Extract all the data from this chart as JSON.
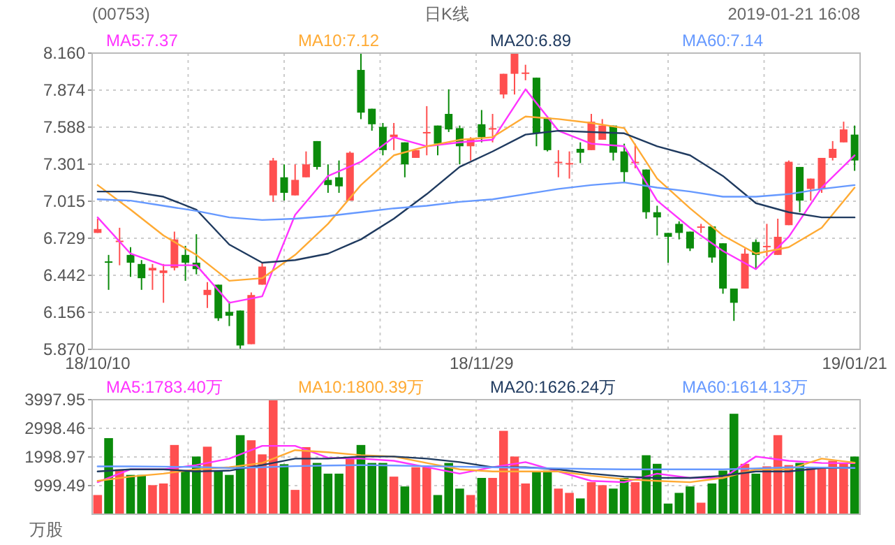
{
  "chart_data": [
    {
      "type": "candlestick",
      "title": "日K线",
      "annotations": [
        "(00753)",
        "2019-01-21 16:08"
      ],
      "categories": [
        "18/10/10",
        null,
        null,
        null,
        null,
        null,
        null,
        null,
        null,
        null,
        null,
        null,
        null,
        null,
        null,
        null,
        null,
        null,
        null,
        null,
        null,
        null,
        null,
        null,
        null,
        null,
        null,
        null,
        null,
        null,
        null,
        null,
        null,
        null,
        null,
        "18/11/29",
        null,
        null,
        null,
        null,
        null,
        null,
        null,
        null,
        null,
        null,
        null,
        null,
        null,
        null,
        null,
        null,
        null,
        null,
        null,
        null,
        null,
        null,
        null,
        null,
        null,
        null,
        null,
        null,
        null,
        null,
        null,
        null,
        null,
        "19/01/21"
      ],
      "ohlc": [
        [
          6.77,
          6.88,
          6.77,
          6.8
        ],
        [
          6.55,
          6.6,
          6.33,
          6.54
        ],
        [
          6.7,
          6.81,
          6.52,
          6.71
        ],
        [
          6.6,
          6.66,
          6.43,
          6.54
        ],
        [
          6.53,
          6.56,
          6.33,
          6.42
        ],
        [
          6.48,
          6.53,
          6.33,
          6.5
        ],
        [
          6.46,
          6.53,
          6.23,
          6.48
        ],
        [
          6.5,
          6.78,
          6.48,
          6.72
        ],
        [
          6.6,
          6.67,
          6.4,
          6.54
        ],
        [
          6.54,
          6.76,
          6.45,
          6.49
        ],
        [
          6.29,
          6.39,
          6.19,
          6.33
        ],
        [
          6.37,
          6.37,
          6.09,
          6.11
        ],
        [
          6.16,
          6.24,
          6.05,
          6.13
        ],
        [
          6.17,
          6.17,
          5.87,
          5.9
        ],
        [
          5.91,
          6.31,
          5.91,
          6.29
        ],
        [
          6.37,
          6.54,
          6.37,
          6.51
        ],
        [
          7.06,
          7.35,
          7.01,
          7.33
        ],
        [
          7.2,
          7.3,
          7.02,
          7.08
        ],
        [
          7.06,
          7.3,
          7.06,
          7.18
        ],
        [
          7.2,
          7.4,
          7.2,
          7.3
        ],
        [
          7.48,
          7.48,
          7.26,
          7.28
        ],
        [
          7.18,
          7.3,
          7.08,
          7.14
        ],
        [
          7.2,
          7.33,
          7.08,
          7.13
        ],
        [
          7.02,
          7.4,
          7.02,
          7.39
        ],
        [
          8.03,
          8.16,
          7.65,
          7.7
        ],
        [
          7.73,
          7.73,
          7.56,
          7.61
        ],
        [
          7.59,
          7.62,
          7.37,
          7.41
        ],
        [
          7.51,
          7.62,
          7.41,
          7.53
        ],
        [
          7.47,
          7.47,
          7.2,
          7.3
        ],
        [
          7.35,
          7.41,
          7.35,
          7.41
        ],
        [
          7.54,
          7.75,
          7.37,
          7.55
        ],
        [
          7.6,
          7.6,
          7.37,
          7.46
        ],
        [
          7.69,
          7.88,
          7.55,
          7.57
        ],
        [
          7.58,
          7.6,
          7.3,
          7.44
        ],
        [
          7.44,
          7.51,
          7.33,
          7.5
        ],
        [
          7.61,
          7.72,
          7.47,
          7.51
        ],
        [
          7.57,
          7.69,
          7.47,
          7.58
        ],
        [
          7.84,
          8.0,
          7.81,
          8.0
        ],
        [
          8.0,
          8.16,
          7.84,
          8.16
        ],
        [
          8.0,
          8.07,
          7.95,
          8.01
        ],
        [
          7.97,
          7.97,
          7.44,
          7.54
        ],
        [
          7.66,
          7.66,
          7.4,
          7.41
        ],
        [
          7.31,
          7.41,
          7.2,
          7.32
        ],
        [
          7.3,
          7.4,
          7.19,
          7.31
        ],
        [
          7.42,
          7.47,
          7.31,
          7.39
        ],
        [
          7.41,
          7.69,
          7.41,
          7.63
        ],
        [
          7.49,
          7.65,
          7.49,
          7.6
        ],
        [
          7.6,
          7.6,
          7.33,
          7.39
        ],
        [
          7.4,
          7.46,
          7.16,
          7.24
        ],
        [
          7.31,
          7.46,
          7.27,
          7.32
        ],
        [
          7.26,
          7.26,
          6.88,
          6.93
        ],
        [
          6.93,
          6.98,
          6.75,
          6.89
        ],
        [
          6.77,
          6.77,
          6.54,
          6.74
        ],
        [
          6.84,
          6.86,
          6.72,
          6.77
        ],
        [
          6.78,
          6.78,
          6.63,
          6.65
        ],
        [
          6.81,
          6.84,
          6.77,
          6.82
        ],
        [
          6.82,
          6.82,
          6.54,
          6.58
        ],
        [
          6.69,
          6.69,
          6.3,
          6.34
        ],
        [
          6.34,
          6.34,
          6.09,
          6.23
        ],
        [
          6.34,
          6.65,
          6.34,
          6.61
        ],
        [
          6.7,
          6.72,
          6.49,
          6.6
        ],
        [
          6.66,
          6.84,
          6.59,
          6.67
        ],
        [
          6.6,
          6.88,
          6.6,
          6.74
        ],
        [
          6.83,
          7.33,
          6.83,
          7.32
        ],
        [
          7.28,
          7.28,
          6.93,
          7.02
        ],
        [
          7.11,
          7.19,
          7.02,
          7.19
        ],
        [
          7.11,
          7.35,
          7.08,
          7.35
        ],
        [
          7.35,
          7.48,
          7.33,
          7.42
        ],
        [
          7.47,
          7.63,
          7.47,
          7.57
        ],
        [
          7.53,
          7.6,
          7.25,
          7.33
        ]
      ],
      "colors": [
        "#ff4f4f",
        "#0b8b0b",
        "#ff4f4f",
        "#0b8b0b",
        "#0b8b0b",
        "#ff4f4f",
        "#ff4f4f",
        "#ff4f4f",
        "#0b8b0b",
        "#0b8b0b",
        "#ff4f4f",
        "#0b8b0b",
        "#0b8b0b",
        "#0b8b0b",
        "#ff4f4f",
        "#ff4f4f",
        "#ff4f4f",
        "#0b8b0b",
        "#ff4f4f",
        "#ff4f4f",
        "#0b8b0b",
        "#0b8b0b",
        "#0b8b0b",
        "#ff4f4f",
        "#0b8b0b",
        "#0b8b0b",
        "#0b8b0b",
        "#ff4f4f",
        "#0b8b0b",
        "#ff4f4f",
        "#ff4f4f",
        "#0b8b0b",
        "#0b8b0b",
        "#0b8b0b",
        "#ff4f4f",
        "#0b8b0b",
        "#ff4f4f",
        "#ff4f4f",
        "#ff4f4f",
        "#ff4f4f",
        "#0b8b0b",
        "#0b8b0b",
        "#ff4f4f",
        "#ff4f4f",
        "#0b8b0b",
        "#ff4f4f",
        "#ff4f4f",
        "#0b8b0b",
        "#0b8b0b",
        "#ff4f4f",
        "#0b8b0b",
        "#0b8b0b",
        "#0b8b0b",
        "#0b8b0b",
        "#0b8b0b",
        "#ff4f4f",
        "#0b8b0b",
        "#0b8b0b",
        "#0b8b0b",
        "#ff4f4f",
        "#0b8b0b",
        "#ff4f4f",
        "#ff4f4f",
        "#ff4f4f",
        "#0b8b0b",
        "#ff4f4f",
        "#ff4f4f",
        "#ff4f4f",
        "#ff4f4f",
        "#0b8b0b"
      ],
      "ylim": [
        5.87,
        8.16
      ],
      "yticks": [
        {
          "value": 5.87,
          "label": "5.870"
        },
        6.156,
        6.442,
        6.729,
        7.015,
        7.301,
        7.588,
        7.874,
        {
          "value": 8.16,
          "label": "8.160"
        }
      ],
      "grid": true,
      "legend": "top",
      "series": [
        {
          "type": "line",
          "name": "MA5:7.37",
          "color": "#ff33ff",
          "values": [
            6.89,
            null,
            null,
            6.61,
            null,
            null,
            6.52,
            null,
            null,
            6.52,
            null,
            null,
            6.23,
            null,
            null,
            6.28,
            null,
            null,
            6.91,
            null,
            null,
            7.21,
            null,
            null,
            7.32,
            null,
            null,
            7.51,
            null,
            null,
            7.44,
            null,
            null,
            7.47,
            null,
            null,
            7.49,
            null,
            null,
            7.88,
            null,
            null,
            7.56,
            null,
            null,
            7.46,
            null,
            null,
            7.44,
            null,
            null,
            7.02,
            null,
            null,
            6.81,
            null,
            null,
            6.63,
            null,
            null,
            6.49,
            null,
            null,
            6.74,
            null,
            null,
            7.12,
            null,
            null,
            7.37
          ]
        },
        {
          "type": "line",
          "name": "MA10:7.12",
          "color": "#ffaa33",
          "values": [
            7.14,
            null,
            null,
            6.95,
            null,
            null,
            6.75,
            null,
            null,
            6.6,
            null,
            null,
            6.4,
            null,
            null,
            6.42,
            null,
            null,
            6.6,
            null,
            null,
            6.84,
            null,
            null,
            7.14,
            null,
            null,
            7.37,
            null,
            null,
            7.44,
            null,
            null,
            7.49,
            null,
            null,
            7.51,
            null,
            null,
            7.67,
            null,
            null,
            7.65,
            null,
            null,
            7.62,
            null,
            null,
            7.58,
            null,
            null,
            7.19,
            null,
            null,
            6.96,
            null,
            null,
            6.75,
            null,
            null,
            6.61,
            null,
            null,
            6.66,
            null,
            null,
            6.81,
            null,
            null,
            7.12
          ]
        },
        {
          "type": "line",
          "name": "MA20:6.89",
          "color": "#1f3a5f",
          "values": [
            7.09,
            null,
            null,
            7.09,
            null,
            null,
            7.05,
            null,
            null,
            6.95,
            null,
            null,
            6.68,
            null,
            null,
            6.54,
            null,
            null,
            6.56,
            null,
            null,
            6.61,
            null,
            null,
            6.72,
            null,
            null,
            6.88,
            null,
            null,
            7.07,
            null,
            null,
            7.28,
            null,
            null,
            7.4,
            null,
            null,
            7.53,
            null,
            null,
            7.56,
            null,
            null,
            7.55,
            null,
            null,
            7.54,
            null,
            null,
            7.44,
            null,
            null,
            7.37,
            null,
            null,
            7.21,
            null,
            null,
            7.0,
            null,
            null,
            6.93,
            null,
            null,
            6.89,
            null,
            null,
            6.89
          ]
        },
        {
          "type": "line",
          "name": "MA60:7.14",
          "color": "#6699ff",
          "values": [
            7.03,
            null,
            null,
            7.02,
            null,
            null,
            6.98,
            null,
            null,
            6.94,
            null,
            null,
            6.89,
            null,
            null,
            6.87,
            null,
            null,
            6.88,
            null,
            null,
            6.9,
            null,
            null,
            6.93,
            null,
            null,
            6.96,
            null,
            null,
            6.98,
            null,
            null,
            7.01,
            null,
            null,
            7.03,
            null,
            null,
            7.07,
            null,
            null,
            7.11,
            null,
            null,
            7.14,
            null,
            null,
            7.16,
            null,
            null,
            7.12,
            null,
            null,
            7.09,
            null,
            null,
            7.05,
            null,
            null,
            7.05,
            null,
            null,
            7.07,
            null,
            null,
            7.11,
            null,
            null,
            7.14
          ]
        }
      ]
    },
    {
      "type": "bar",
      "ylabel": "万股",
      "tick_labels": "y",
      "categories": [
        null,
        null,
        null,
        null,
        null,
        null,
        null,
        null,
        null,
        null,
        null,
        null,
        null,
        null,
        null,
        null,
        null,
        null,
        null,
        null,
        null,
        null,
        null,
        null,
        null,
        null,
        null,
        null,
        null,
        null,
        null,
        null,
        null,
        null,
        null,
        null,
        null,
        null,
        null,
        null,
        null,
        null,
        null,
        null,
        null,
        null,
        null,
        null,
        null,
        null,
        null,
        null,
        null,
        null,
        null,
        null,
        null,
        null,
        null,
        null,
        null,
        null,
        null,
        null,
        null,
        null,
        null,
        null,
        null,
        null
      ],
      "ylim": [
        0,
        3997.95
      ],
      "yticks": [
        999.49,
        1998.97,
        2998.46,
        3997.95
      ],
      "grid": true,
      "legend": "top",
      "series": [
        {
          "type": "bar",
          "values": [
            671,
            2656,
            1567,
            1373,
            1373,
            1015,
            1074,
            2417,
            1492,
            2014,
            2357,
            1492,
            1373,
            2760,
            2581,
            2089,
            3997.95,
            1746,
            850,
            2342,
            1790,
            1417,
            1417,
            1940,
            2417,
            1790,
            1790,
            1313,
            970,
            1641,
            1641,
            671,
            1790,
            895,
            671,
            1268,
            1268,
            2910,
            2014,
            1074,
            1492,
            1522,
            895,
            746,
            552,
            1119,
            1015,
            895,
            1268,
            1119,
            2059,
            1760,
            373,
            746,
            970,
            403,
            1074,
            1522,
            3506,
            1760,
            1417,
            1671,
            2760,
            1716,
            1790,
            1611,
            1611,
            1865,
            1790,
            2014
          ],
          "colors": [
            "#ff4f4f",
            "#0b8b0b",
            "#ff4f4f",
            "#0b8b0b",
            "#0b8b0b",
            "#ff4f4f",
            "#ff4f4f",
            "#ff4f4f",
            "#0b8b0b",
            "#0b8b0b",
            "#ff4f4f",
            "#0b8b0b",
            "#0b8b0b",
            "#0b8b0b",
            "#ff4f4f",
            "#ff4f4f",
            "#ff4f4f",
            "#0b8b0b",
            "#ff4f4f",
            "#ff4f4f",
            "#0b8b0b",
            "#0b8b0b",
            "#0b8b0b",
            "#ff4f4f",
            "#0b8b0b",
            "#0b8b0b",
            "#0b8b0b",
            "#ff4f4f",
            "#0b8b0b",
            "#ff4f4f",
            "#ff4f4f",
            "#0b8b0b",
            "#0b8b0b",
            "#0b8b0b",
            "#ff4f4f",
            "#0b8b0b",
            "#ff4f4f",
            "#ff4f4f",
            "#ff4f4f",
            "#ff4f4f",
            "#0b8b0b",
            "#0b8b0b",
            "#ff4f4f",
            "#ff4f4f",
            "#0b8b0b",
            "#ff4f4f",
            "#ff4f4f",
            "#0b8b0b",
            "#0b8b0b",
            "#ff4f4f",
            "#0b8b0b",
            "#0b8b0b",
            "#0b8b0b",
            "#0b8b0b",
            "#0b8b0b",
            "#ff4f4f",
            "#0b8b0b",
            "#0b8b0b",
            "#0b8b0b",
            "#ff4f4f",
            "#0b8b0b",
            "#ff4f4f",
            "#ff4f4f",
            "#ff4f4f",
            "#0b8b0b",
            "#ff4f4f",
            "#ff4f4f",
            "#ff4f4f",
            "#ff4f4f",
            "#0b8b0b"
          ]
        },
        {
          "type": "line",
          "name": "MA5:1783.40万",
          "color": "#ff33ff",
          "values": [
            1119,
            null,
            null,
            1567,
            null,
            null,
            1567,
            null,
            null,
            1716,
            null,
            null,
            1940,
            null,
            null,
            2387,
            null,
            null,
            2387,
            null,
            null,
            1970,
            null,
            null,
            1940,
            null,
            null,
            1865,
            null,
            null,
            1641,
            null,
            null,
            1417,
            null,
            null,
            1641,
            null,
            null,
            1820,
            null,
            null,
            1492,
            null,
            null,
            1164,
            null,
            null,
            1119,
            null,
            null,
            1417,
            null,
            null,
            1268,
            null,
            null,
            1268,
            null,
            null,
            2014,
            null,
            null,
            1865,
            null,
            null,
            1790,
            null,
            null,
            1783.4
          ]
        },
        {
          "type": "line",
          "name": "MA10:1800.39万",
          "color": "#ffaa33",
          "values": [
            1164,
            null,
            null,
            1313,
            null,
            null,
            1417,
            null,
            null,
            1567,
            null,
            null,
            1641,
            null,
            null,
            1790,
            null,
            null,
            2238,
            null,
            null,
            2163,
            null,
            null,
            2059,
            null,
            null,
            2014,
            null,
            null,
            1790,
            null,
            null,
            1567,
            null,
            null,
            1492,
            null,
            null,
            1492,
            null,
            null,
            1492,
            null,
            null,
            1343,
            null,
            null,
            1223,
            null,
            null,
            1164,
            null,
            null,
            1119,
            null,
            null,
            1268,
            null,
            null,
            1567,
            null,
            null,
            1567,
            null,
            null,
            1940,
            null,
            null,
            1800.39
          ]
        },
        {
          "type": "line",
          "name": "MA20:1626.24万",
          "color": "#1f3a5f",
          "values": [
            1492,
            null,
            null,
            1567,
            null,
            null,
            1567,
            null,
            null,
            1492,
            null,
            null,
            1522,
            null,
            null,
            1716,
            null,
            null,
            1940,
            null,
            null,
            1940,
            null,
            null,
            2014,
            null,
            null,
            2014,
            null,
            null,
            1940,
            null,
            null,
            1820,
            null,
            null,
            1641,
            null,
            null,
            1641,
            null,
            null,
            1567,
            null,
            null,
            1417,
            null,
            null,
            1313,
            null,
            null,
            1268,
            null,
            null,
            1268,
            null,
            null,
            1343,
            null,
            null,
            1492,
            null,
            null,
            1492,
            null,
            null,
            1611,
            null,
            null,
            1626.24
          ]
        },
        {
          "type": "line",
          "name": "MA60:1614.13万",
          "color": "#6699ff",
          "values": [
            1671,
            null,
            null,
            1671,
            null,
            null,
            1660,
            null,
            null,
            1650,
            null,
            null,
            1611,
            null,
            null,
            1640,
            null,
            null,
            1680,
            null,
            null,
            1700,
            null,
            null,
            1716,
            null,
            null,
            1700,
            null,
            null,
            1680,
            null,
            null,
            1660,
            null,
            null,
            1641,
            null,
            null,
            1620,
            null,
            null,
            1600,
            null,
            null,
            1580,
            null,
            null,
            1567,
            null,
            null,
            1567,
            null,
            null,
            1567,
            null,
            null,
            1567,
            null,
            null,
            1600,
            null,
            null,
            1641,
            null,
            null,
            1630,
            null,
            null,
            1614.13
          ]
        }
      ]
    }
  ]
}
